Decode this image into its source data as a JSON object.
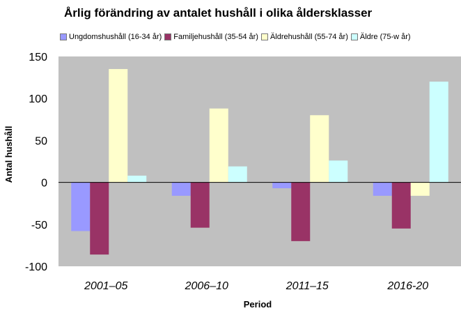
{
  "chart_data": {
    "type": "bar",
    "title": "Årlig förändring av antalet hushåll i olika åldersklasser",
    "xlabel": "Period",
    "ylabel": "Antal hushåll",
    "categories": [
      "2001–05",
      "2006–10",
      "2011–15",
      "2016-20"
    ],
    "series": [
      {
        "name": "Ungdomshushåll (16-34 år)",
        "color": "#9999ff",
        "values": [
          -58,
          -16,
          -7,
          -16
        ]
      },
      {
        "name": "Familjehushåll (35-54 år)",
        "color": "#993366",
        "values": [
          -86,
          -54,
          -70,
          -55
        ]
      },
      {
        "name": "Äldrehushåll (55-74 år)",
        "color": "#ffffcc",
        "values": [
          135,
          88,
          80,
          -16
        ]
      },
      {
        "name": "Äldre (75-w år)",
        "color": "#ccffff",
        "values": [
          8,
          19,
          26,
          120
        ]
      }
    ],
    "ylim": [
      -100,
      150
    ],
    "yticks": [
      -100,
      -50,
      0,
      50,
      100,
      150
    ],
    "plot_background": "#c0c0c0",
    "grid": false,
    "legend_position": "top"
  }
}
